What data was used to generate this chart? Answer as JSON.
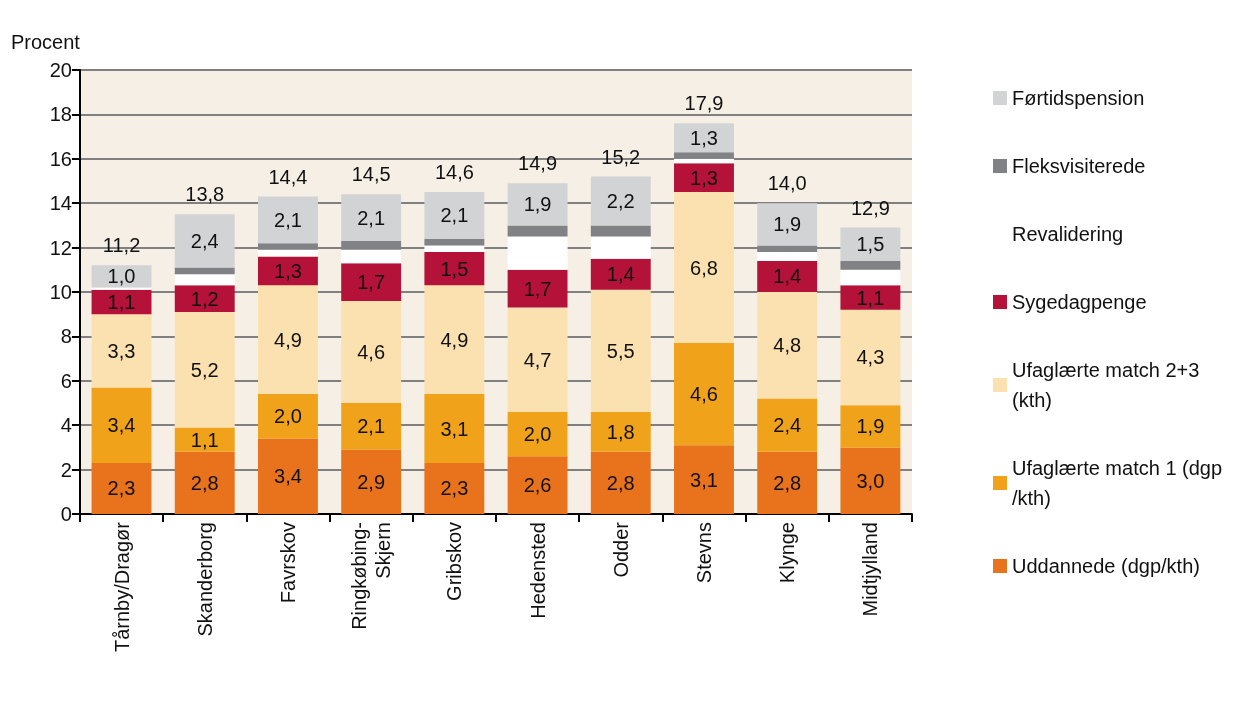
{
  "chart_data": {
    "type": "bar",
    "stacked": true,
    "ylabel": "Procent",
    "categories": [
      "Tårnby/Dragør",
      "Skanderborg",
      "Favrskov",
      "Ringkøbing-Skjern",
      "Gribskov",
      "Hedensted",
      "Odder",
      "Stevns",
      "Klynge",
      "Midtjylland"
    ],
    "series": [
      {
        "name": "Uddannede (dgp/kth)",
        "color": "#e8731c",
        "values": [
          2.3,
          2.8,
          3.4,
          2.9,
          2.3,
          2.6,
          2.8,
          3.1,
          2.8,
          3.0
        ],
        "value_labels": [
          "2,3",
          "2,8",
          "3,4",
          "2,9",
          "2,3",
          "2,6",
          "2,8",
          "3,1",
          "2,8",
          "3,0"
        ]
      },
      {
        "name": "Ufaglærte match 1 (dgp/kth)",
        "color": "#f0a21a",
        "values": [
          3.4,
          1.1,
          2.0,
          2.1,
          3.1,
          2.0,
          1.8,
          4.6,
          2.4,
          1.9
        ],
        "value_labels": [
          "3,4",
          "1,1",
          "2,0",
          "2,1",
          "3,1",
          "2,0",
          "1,8",
          "4,6",
          "2,4",
          "1,9"
        ]
      },
      {
        "name": "Ufaglærte match 2+3 (kth)",
        "color": "#fbe0b0",
        "values": [
          3.3,
          5.2,
          4.9,
          4.6,
          4.9,
          4.7,
          5.5,
          6.8,
          4.8,
          4.3
        ],
        "value_labels": [
          "3,3",
          "5,2",
          "4,9",
          "4,6",
          "4,9",
          "4,7",
          "5,5",
          "6,8",
          "4,8",
          "4,3"
        ]
      },
      {
        "name": "Sygedagpenge",
        "color": "#b5123a",
        "values": [
          1.1,
          1.2,
          1.3,
          1.7,
          1.5,
          1.7,
          1.4,
          1.3,
          1.4,
          1.1
        ],
        "value_labels": [
          "1,1",
          "1,2",
          "1,3",
          "1,7",
          "1,5",
          "1,7",
          "1,4",
          "1,3",
          "1,4",
          "1,1"
        ]
      },
      {
        "name": "Revalidering",
        "color": "#ffffff",
        "values": [
          0.1,
          0.5,
          0.3,
          0.6,
          0.3,
          1.5,
          1.0,
          0.2,
          0.4,
          0.7
        ]
      },
      {
        "name": "Fleksvisiterede",
        "color": "#808285",
        "values": [
          0.0,
          0.3,
          0.3,
          0.4,
          0.3,
          0.5,
          0.5,
          0.3,
          0.3,
          0.4
        ]
      },
      {
        "name": "Førtidspension",
        "color": "#d1d3d4",
        "values": [
          1.0,
          2.4,
          2.1,
          2.1,
          2.1,
          1.9,
          2.2,
          1.3,
          1.9,
          1.5
        ],
        "value_labels": [
          "1,0",
          "2,4",
          "2,1",
          "2,1",
          "2,1",
          "1,9",
          "2,2",
          "1,3",
          "1,9",
          "1,5"
        ]
      }
    ],
    "totals": [
      "11,2",
      "13,8",
      "14,4",
      "14,5",
      "14,6",
      "14,9",
      "15,2",
      "17,9",
      "14,0",
      "12,9"
    ],
    "ylim": [
      0,
      20
    ],
    "yticks": [
      0,
      2,
      4,
      6,
      8,
      10,
      12,
      14,
      16,
      18,
      20
    ],
    "grid": "y",
    "legend": "right"
  }
}
